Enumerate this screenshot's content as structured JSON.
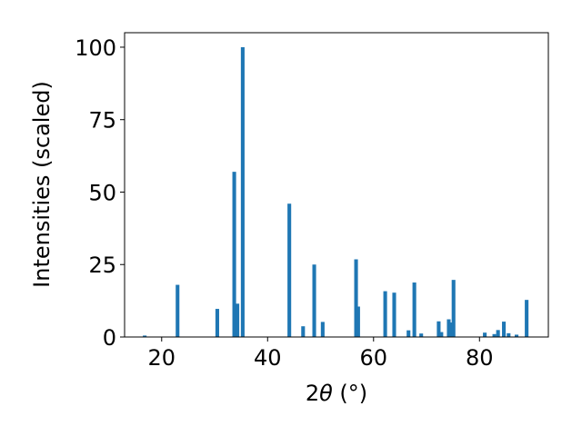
{
  "chart_data": {
    "type": "bar",
    "xlabel_main": "2",
    "xlabel_theta": "θ",
    "xlabel_unit": " (°)",
    "ylabel": "Intensities (scaled)",
    "title": "",
    "xlim": [
      13,
      93
    ],
    "ylim": [
      0,
      105
    ],
    "x_ticks": [
      20,
      40,
      60,
      80
    ],
    "y_ticks": [
      0,
      25,
      50,
      75,
      100
    ],
    "grid": false,
    "color": "#1f77b4",
    "bar_width": 0.7,
    "x": [
      16.8,
      23.0,
      30.5,
      33.7,
      34.3,
      35.3,
      44.1,
      46.7,
      48.8,
      50.4,
      56.7,
      57.1,
      62.2,
      63.9,
      66.6,
      67.7,
      69.0,
      72.3,
      72.8,
      74.2,
      74.5,
      75.1,
      81.0,
      82.8,
      83.5,
      84.6,
      85.5,
      87.0,
      88.9
    ],
    "values": [
      0.5,
      18.0,
      9.7,
      57.0,
      11.5,
      100.0,
      46.0,
      3.7,
      25.0,
      5.2,
      26.8,
      10.5,
      15.8,
      15.3,
      2.3,
      18.8,
      1.2,
      5.4,
      1.7,
      6.1,
      5.0,
      19.7,
      1.5,
      1.0,
      2.4,
      5.3,
      1.3,
      0.8,
      12.8
    ]
  }
}
